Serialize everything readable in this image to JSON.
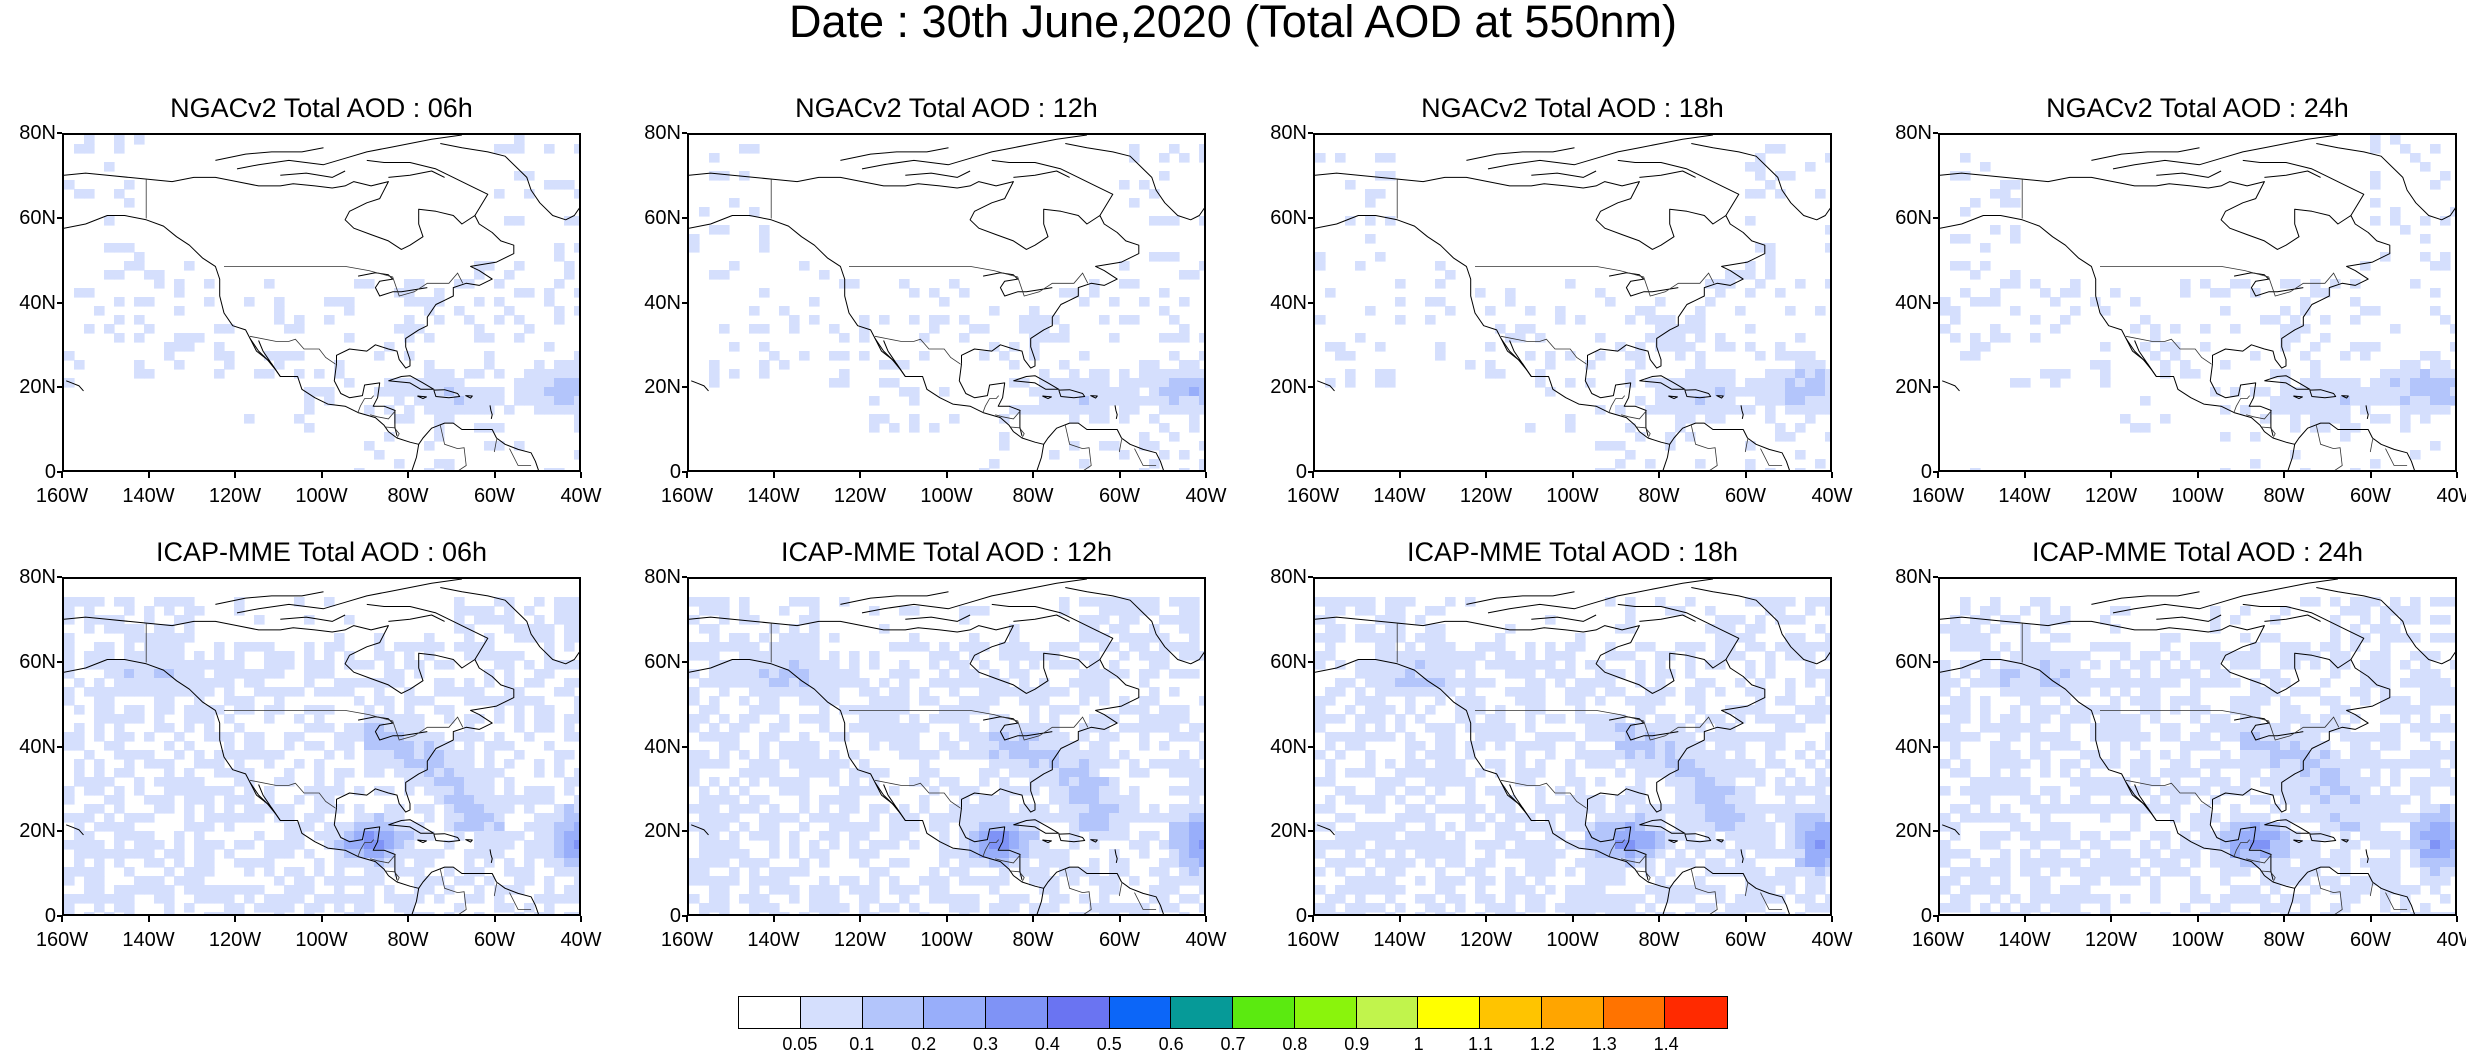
{
  "main_title": "Date : 30th June,2020 (Total AOD at 550nm)",
  "lat_ticks": [
    "80N",
    "60N",
    "40N",
    "20N",
    "0"
  ],
  "lon_ticks": [
    "160W",
    "140W",
    "120W",
    "100W",
    "80W",
    "60W",
    "40W"
  ],
  "panels": [
    {
      "title": "NGACv2 Total AOD : 06h",
      "model": "NGACv2",
      "lead": "06h"
    },
    {
      "title": "NGACv2 Total AOD : 12h",
      "model": "NGACv2",
      "lead": "12h"
    },
    {
      "title": "NGACv2 Total AOD : 18h",
      "model": "NGACv2",
      "lead": "18h"
    },
    {
      "title": "NGACv2 Total AOD : 24h",
      "model": "NGACv2",
      "lead": "24h"
    },
    {
      "title": "ICAP-MME Total AOD : 06h",
      "model": "ICAP-MME",
      "lead": "06h"
    },
    {
      "title": "ICAP-MME Total AOD : 12h",
      "model": "ICAP-MME",
      "lead": "12h"
    },
    {
      "title": "ICAP-MME Total AOD : 18h",
      "model": "ICAP-MME",
      "lead": "18h"
    },
    {
      "title": "ICAP-MME Total AOD : 24h",
      "model": "ICAP-MME",
      "lead": "24h"
    }
  ],
  "colorbar": {
    "labels": [
      "0.05",
      "0.1",
      "0.2",
      "0.3",
      "0.4",
      "0.5",
      "0.6",
      "0.7",
      "0.8",
      "0.9",
      "1",
      "1.1",
      "1.2",
      "1.3",
      "1.4"
    ],
    "colors": [
      "#ffffff",
      "#d5dffd",
      "#b3c5fb",
      "#98aefa",
      "#7f93f6",
      "#6a74f2",
      "#0c66f8",
      "#069a98",
      "#5bea10",
      "#8af40c",
      "#c1f44c",
      "#ffff00",
      "#ffc400",
      "#ffa500",
      "#ff7300",
      "#ff2a00"
    ]
  },
  "map_extent": {
    "lon": [
      -160,
      -40
    ],
    "lat": [
      0,
      80
    ]
  }
}
